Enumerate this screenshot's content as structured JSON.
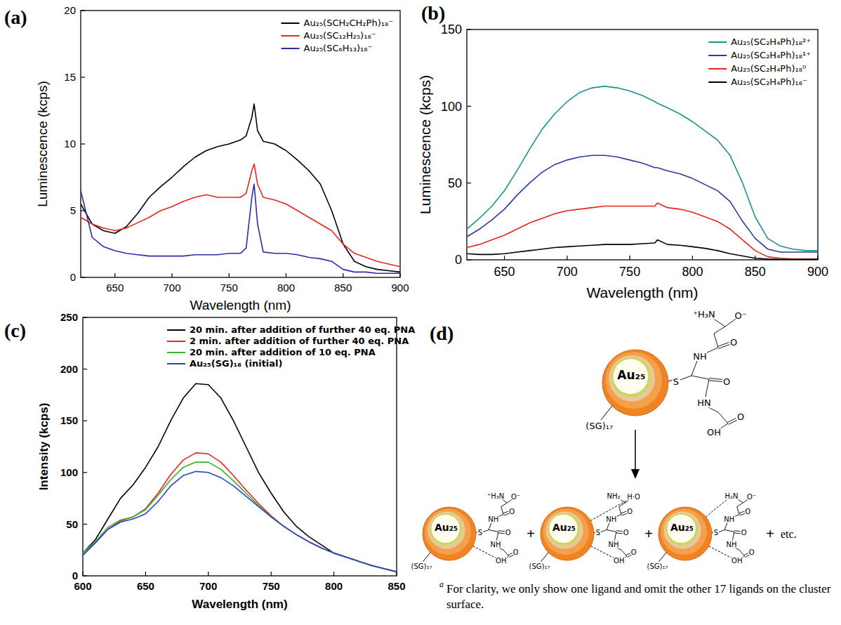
{
  "chart_data": [
    {
      "type": "line",
      "panel_label": "(a)",
      "x_label": "Wavelength (nm)",
      "y_label": "Luminescence (kcps)",
      "xlim": [
        620,
        900
      ],
      "xticks": [
        650,
        700,
        750,
        800,
        850,
        900
      ],
      "ylim": [
        0,
        20
      ],
      "yticks": [
        0,
        5,
        10,
        15,
        20
      ],
      "grid": false,
      "legend": "upper right",
      "x": [
        620,
        630,
        640,
        650,
        660,
        670,
        680,
        690,
        700,
        710,
        720,
        730,
        740,
        750,
        760,
        765,
        770,
        772,
        775,
        780,
        790,
        800,
        810,
        820,
        830,
        840,
        850,
        860,
        870,
        880,
        890,
        900
      ],
      "series": [
        {
          "name": "Au₂₅(SCH₂CH₂Ph)₁₈⁻",
          "color": "#000000",
          "values": [
            5.5,
            4,
            3.5,
            3.3,
            3.8,
            4.8,
            6,
            6.8,
            7.5,
            8.3,
            9,
            9.5,
            9.8,
            10,
            10.3,
            10.6,
            12,
            13,
            11,
            10.2,
            10,
            9.5,
            8.8,
            8,
            7,
            5,
            2.5,
            1.2,
            0.8,
            0.6,
            0.5,
            0.4
          ]
        },
        {
          "name": "Au₂₅(SC₁₂H₂₅)₁₈⁻",
          "color": "#e8261c",
          "values": [
            4.5,
            4,
            3.7,
            3.5,
            3.7,
            4.1,
            4.5,
            5,
            5.3,
            5.7,
            6,
            6.2,
            6,
            6,
            6,
            6.3,
            8,
            8.5,
            7,
            6,
            5.8,
            5.5,
            5,
            4.5,
            4,
            3.5,
            2.5,
            1.8,
            1.5,
            1.2,
            1,
            0.8
          ]
        },
        {
          "name": "Au₂₅(SC₆H₁₃)₁₈⁻",
          "color": "#2c2ca8",
          "values": [
            6.5,
            3,
            2.3,
            2,
            1.8,
            1.7,
            1.6,
            1.6,
            1.6,
            1.6,
            1.7,
            1.7,
            1.7,
            1.8,
            1.8,
            2.2,
            6,
            7,
            4,
            1.9,
            1.8,
            1.8,
            1.7,
            1.5,
            1.4,
            1.2,
            0.6,
            0.4,
            0.4,
            0.3,
            0.3,
            0.3
          ]
        }
      ]
    },
    {
      "type": "line",
      "panel_label": "(b)",
      "x_label": "Wavelength (nm)",
      "y_label": "Luminescence (kcps)",
      "xlim": [
        620,
        900
      ],
      "xticks": [
        650,
        700,
        750,
        800,
        850,
        900
      ],
      "ylim": [
        0,
        150
      ],
      "yticks": [
        0,
        50,
        100,
        150
      ],
      "grid": false,
      "legend": "upper right",
      "x": [
        620,
        630,
        640,
        650,
        660,
        670,
        680,
        690,
        700,
        710,
        720,
        730,
        740,
        750,
        760,
        770,
        772,
        780,
        790,
        800,
        810,
        820,
        830,
        840,
        850,
        860,
        870,
        880,
        890,
        900
      ],
      "series": [
        {
          "name": "Au₂₅(SC₂H₄Ph)₁₈²⁺",
          "color": "#17948a",
          "values": [
            20,
            27,
            35,
            45,
            58,
            72,
            85,
            95,
            103,
            109,
            112,
            113,
            112,
            110,
            107,
            103,
            102,
            99,
            95,
            90,
            84,
            78,
            68,
            50,
            28,
            14,
            9,
            7,
            6,
            6
          ]
        },
        {
          "name": "Au₂₅(SC₂H₄Ph)₁₈¹⁺",
          "color": "#2b3b9e",
          "values": [
            15,
            20,
            26,
            33,
            42,
            50,
            57,
            62,
            65,
            67,
            68,
            68,
            67,
            65,
            63,
            60,
            60,
            58,
            56,
            53,
            49,
            45,
            38,
            25,
            14,
            7,
            5,
            5,
            5,
            5
          ]
        },
        {
          "name": "Au₂₅(SC₂H₄Ph)₁₈⁰",
          "color": "#e8261c",
          "values": [
            8,
            10,
            13,
            16,
            20,
            24,
            27,
            30,
            32,
            33,
            34,
            35,
            35,
            35,
            35,
            35,
            37,
            34,
            33,
            31,
            28,
            25,
            20,
            13,
            6,
            2,
            1,
            0.5,
            0.5,
            0.5
          ]
        },
        {
          "name": "Au₂₅(SC₂H₄Ph)₁₈⁻",
          "color": "#000000",
          "values": [
            4,
            3.5,
            3.5,
            4,
            5,
            6,
            7,
            8,
            8.5,
            9,
            9.5,
            10,
            10,
            10,
            10.5,
            11,
            13,
            10,
            9.5,
            8.5,
            7.5,
            6,
            4,
            2.5,
            1,
            0.5,
            0.3,
            0.3,
            0.3,
            0.3
          ]
        }
      ]
    },
    {
      "type": "line",
      "panel_label": "(c)",
      "x_label": "Wavelength (nm)",
      "y_label": "Intensity (kcps)",
      "xlim": [
        600,
        850
      ],
      "xticks": [
        600,
        650,
        700,
        750,
        800,
        850
      ],
      "ylim": [
        0,
        250
      ],
      "yticks": [
        0,
        50,
        100,
        150,
        200,
        250
      ],
      "grid": false,
      "legend": "upper left",
      "x": [
        600,
        610,
        620,
        630,
        640,
        650,
        660,
        670,
        680,
        690,
        700,
        710,
        720,
        730,
        740,
        750,
        760,
        770,
        780,
        790,
        800,
        810,
        820,
        830,
        840,
        850
      ],
      "series": [
        {
          "name": "20 min. after addition of further 40 eq. PNA",
          "color": "#000000",
          "values": [
            22,
            35,
            55,
            75,
            88,
            105,
            125,
            150,
            172,
            186,
            185,
            172,
            150,
            125,
            100,
            80,
            62,
            48,
            38,
            30,
            22,
            18,
            14,
            10,
            7,
            4
          ]
        },
        {
          "name": "2 min. after addition of further 40 eq. PNA",
          "color": "#e8261c",
          "values": [
            20,
            32,
            45,
            53,
            57,
            65,
            80,
            98,
            112,
            119,
            118,
            110,
            97,
            83,
            70,
            58,
            48,
            40,
            33,
            27,
            22,
            18,
            14,
            10,
            7,
            4
          ]
        },
        {
          "name": "20 min. after addition of 10 eq. PNA",
          "color": "#2eb82e",
          "values": [
            22,
            33,
            47,
            54,
            57,
            64,
            78,
            93,
            105,
            110,
            110,
            103,
            92,
            80,
            68,
            57,
            48,
            40,
            33,
            27,
            22,
            18,
            14,
            10,
            7,
            4
          ]
        },
        {
          "name": "Au₂₅(SG)₁₈ (initial)",
          "color": "#2a46c8",
          "values": [
            20,
            32,
            45,
            52,
            55,
            60,
            72,
            87,
            97,
            101,
            100,
            95,
            87,
            77,
            67,
            57,
            48,
            40,
            33,
            27,
            22,
            18,
            14,
            10,
            7,
            4
          ]
        }
      ]
    }
  ],
  "diagram": {
    "panel_label": "(d)",
    "reactant": {
      "core": "Au₂₅",
      "shell": "(SG)₁₇",
      "ligand": [
        "⁺H₃N",
        "O⁻",
        "O",
        "NH",
        "S",
        "O",
        "HN",
        "O",
        "OH"
      ]
    },
    "products": [
      {
        "core": "Au₂₅",
        "shell": "(SG)₁₇",
        "ligand": [
          "⁺H₃N",
          "O⁻",
          "O",
          "NH",
          "S",
          "O",
          "NH",
          "O",
          "OH"
        ]
      },
      {
        "core": "Au₂₅",
        "shell": "(SG)₁₇",
        "ligand": [
          "NH₂",
          "H·O",
          "O",
          "NH",
          "S",
          "O",
          "NH",
          "O",
          "OH"
        ]
      },
      {
        "core": "Au₂₅",
        "shell": "(SG)₁₇",
        "ligand": [
          "H₂N",
          "O⁻",
          "O",
          "NH",
          "S",
          "O",
          "NH",
          "O",
          "OH"
        ]
      }
    ],
    "plus": "+",
    "etc": "etc.",
    "footnote": {
      "mark": "a",
      "text": "For clarity, we only show one ligand and omit the other 17 ligands on the cluster surface."
    }
  }
}
